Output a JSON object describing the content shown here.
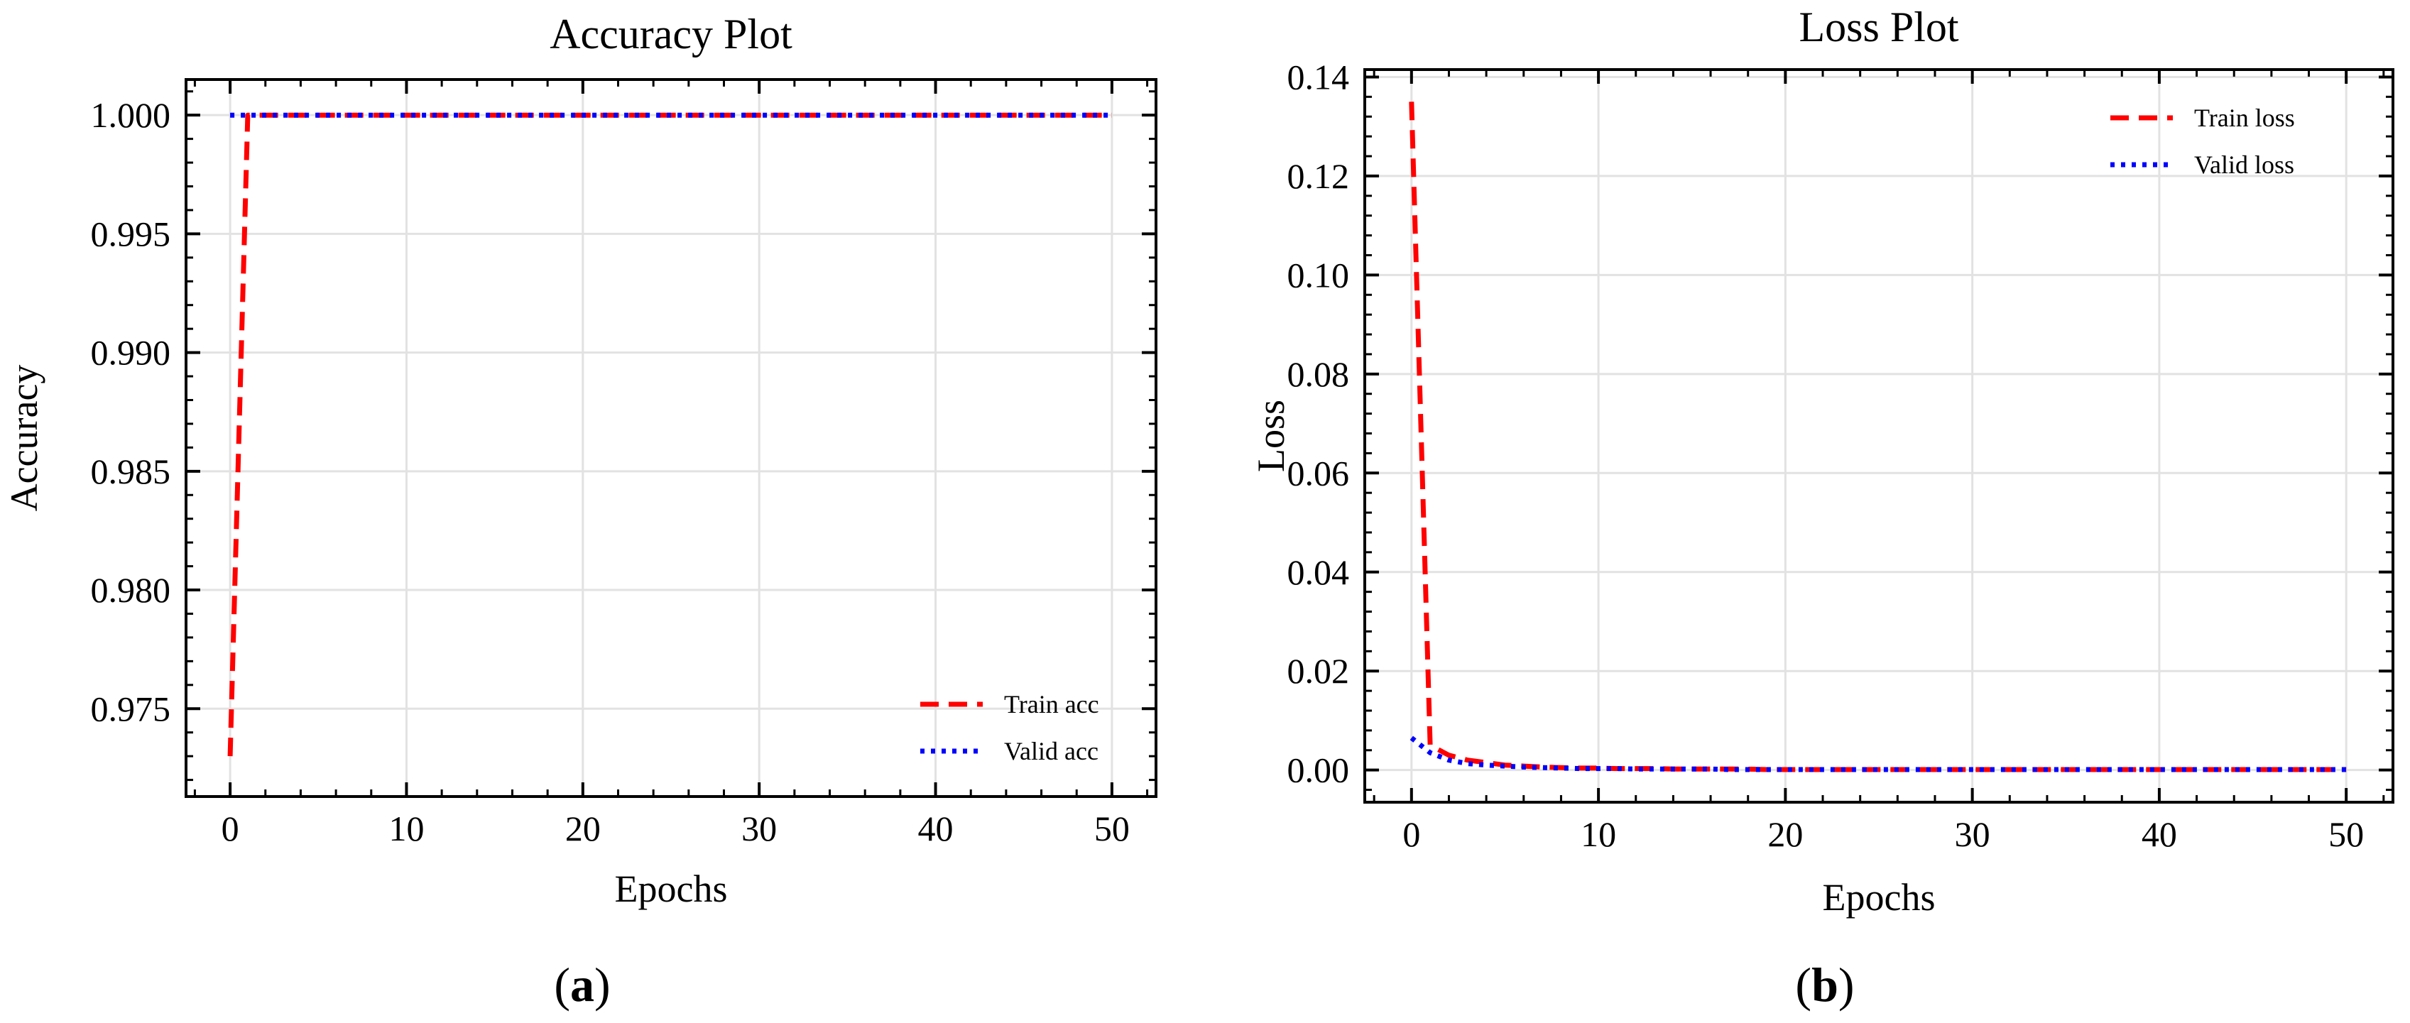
{
  "chart_data": [
    {
      "type": "line",
      "title": "Accuracy Plot",
      "xlabel": "Epochs",
      "ylabel": "Accuracy",
      "panel_label": "a",
      "xlim": [
        -2.5,
        52.5
      ],
      "ylim": [
        0.9713,
        1.0015
      ],
      "xticks": [
        0,
        10,
        20,
        30,
        40,
        50
      ],
      "xtick_labels": [
        "0",
        "10",
        "20",
        "30",
        "40",
        "50"
      ],
      "yticks": [
        0.975,
        0.98,
        0.985,
        0.99,
        0.995,
        1.0
      ],
      "ytick_labels": [
        "0.975",
        "0.980",
        "0.985",
        "0.990",
        "0.995",
        "1.000"
      ],
      "grid": true,
      "legend_position": "bottom-right",
      "series": [
        {
          "name": "Train acc",
          "color": "#ff0000",
          "style": "dashed",
          "x": [
            0,
            1,
            2,
            3,
            4,
            5,
            6,
            7,
            8,
            9,
            10,
            11,
            12,
            13,
            14,
            15,
            16,
            17,
            18,
            19,
            20,
            21,
            22,
            23,
            24,
            25,
            26,
            27,
            28,
            29,
            30,
            31,
            32,
            33,
            34,
            35,
            36,
            37,
            38,
            39,
            40,
            41,
            42,
            43,
            44,
            45,
            46,
            47,
            48,
            49,
            50
          ],
          "y": [
            0.973,
            1.0,
            1.0,
            1.0,
            1.0,
            1.0,
            1.0,
            1.0,
            1.0,
            1.0,
            1.0,
            1.0,
            1.0,
            1.0,
            1.0,
            1.0,
            1.0,
            1.0,
            1.0,
            1.0,
            1.0,
            1.0,
            1.0,
            1.0,
            1.0,
            1.0,
            1.0,
            1.0,
            1.0,
            1.0,
            1.0,
            1.0,
            1.0,
            1.0,
            1.0,
            1.0,
            1.0,
            1.0,
            1.0,
            1.0,
            1.0,
            1.0,
            1.0,
            1.0,
            1.0,
            1.0,
            1.0,
            1.0,
            1.0,
            1.0,
            1.0
          ]
        },
        {
          "name": "Valid acc",
          "color": "#0000ff",
          "style": "dotted",
          "x": [
            0,
            1,
            2,
            3,
            4,
            5,
            6,
            7,
            8,
            9,
            10,
            11,
            12,
            13,
            14,
            15,
            16,
            17,
            18,
            19,
            20,
            21,
            22,
            23,
            24,
            25,
            26,
            27,
            28,
            29,
            30,
            31,
            32,
            33,
            34,
            35,
            36,
            37,
            38,
            39,
            40,
            41,
            42,
            43,
            44,
            45,
            46,
            47,
            48,
            49,
            50
          ],
          "y": [
            1.0,
            1.0,
            1.0,
            1.0,
            1.0,
            1.0,
            1.0,
            1.0,
            1.0,
            1.0,
            1.0,
            1.0,
            1.0,
            1.0,
            1.0,
            1.0,
            1.0,
            1.0,
            1.0,
            1.0,
            1.0,
            1.0,
            1.0,
            1.0,
            1.0,
            1.0,
            1.0,
            1.0,
            1.0,
            1.0,
            1.0,
            1.0,
            1.0,
            1.0,
            1.0,
            1.0,
            1.0,
            1.0,
            1.0,
            1.0,
            1.0,
            1.0,
            1.0,
            1.0,
            1.0,
            1.0,
            1.0,
            1.0,
            1.0,
            1.0,
            1.0
          ]
        }
      ]
    },
    {
      "type": "line",
      "title": "Loss Plot",
      "xlabel": "Epochs",
      "ylabel": "Loss",
      "panel_label": "b",
      "xlim": [
        -2.5,
        52.5
      ],
      "ylim": [
        -0.0065,
        0.1415
      ],
      "xticks": [
        0,
        10,
        20,
        30,
        40,
        50
      ],
      "xtick_labels": [
        "0",
        "10",
        "20",
        "30",
        "40",
        "50"
      ],
      "yticks": [
        0.0,
        0.02,
        0.04,
        0.06,
        0.08,
        0.1,
        0.12,
        0.14
      ],
      "ytick_labels": [
        "0.00",
        "0.02",
        "0.04",
        "0.06",
        "0.08",
        "0.10",
        "0.12",
        "0.14"
      ],
      "grid": true,
      "legend_position": "top-right",
      "series": [
        {
          "name": "Train loss",
          "color": "#ff0000",
          "style": "dashed",
          "x": [
            0,
            1,
            2,
            3,
            4,
            5,
            6,
            7,
            8,
            9,
            10,
            11,
            12,
            13,
            14,
            15,
            16,
            17,
            18,
            19,
            20,
            21,
            22,
            23,
            24,
            25,
            26,
            27,
            28,
            29,
            30,
            31,
            32,
            33,
            34,
            35,
            36,
            37,
            38,
            39,
            40,
            41,
            42,
            43,
            44,
            45,
            46,
            47,
            48,
            49,
            50
          ],
          "y": [
            0.135,
            0.005,
            0.003,
            0.002,
            0.0015,
            0.001,
            0.0008,
            0.0006,
            0.0005,
            0.0004,
            0.0004,
            0.0003,
            0.0003,
            0.0003,
            0.0002,
            0.0002,
            0.0002,
            0.0002,
            0.0002,
            0.0001,
            0.0001,
            0.0001,
            0.0001,
            0.0001,
            0.0001,
            0.0001,
            0.0001,
            0.0001,
            0.0001,
            0.0001,
            0.0001,
            0.0001,
            0.0001,
            0.0001,
            0.0001,
            0.0001,
            0.0001,
            0.0001,
            0.0001,
            0.0001,
            0.0001,
            0.0001,
            0.0001,
            0.0001,
            0.0001,
            0.0001,
            0.0001,
            0.0001,
            0.0001,
            0.0001,
            0.0001
          ]
        },
        {
          "name": "Valid loss",
          "color": "#0000ff",
          "style": "dotted",
          "x": [
            0,
            1,
            2,
            3,
            4,
            5,
            6,
            7,
            8,
            9,
            10,
            11,
            12,
            13,
            14,
            15,
            16,
            17,
            18,
            19,
            20,
            21,
            22,
            23,
            24,
            25,
            26,
            27,
            28,
            29,
            30,
            31,
            32,
            33,
            34,
            35,
            36,
            37,
            38,
            39,
            40,
            41,
            42,
            43,
            44,
            45,
            46,
            47,
            48,
            49,
            50
          ],
          "y": [
            0.0065,
            0.0035,
            0.002,
            0.0013,
            0.001,
            0.0008,
            0.0006,
            0.0005,
            0.0004,
            0.0003,
            0.0003,
            0.0003,
            0.0002,
            0.0002,
            0.0002,
            0.0002,
            0.0002,
            0.0001,
            0.0001,
            0.0001,
            0.0001,
            0.0001,
            0.0001,
            0.0001,
            0.0001,
            0.0001,
            0.0001,
            0.0001,
            0.0001,
            0.0001,
            0.0001,
            0.0001,
            0.0001,
            0.0001,
            0.0001,
            0.0001,
            0.0001,
            0.0001,
            0.0001,
            0.0001,
            0.0001,
            0.0001,
            0.0001,
            0.0001,
            0.0001,
            0.0001,
            0.0001,
            0.0001,
            0.0001,
            0.0001,
            0.0001
          ]
        }
      ]
    }
  ]
}
